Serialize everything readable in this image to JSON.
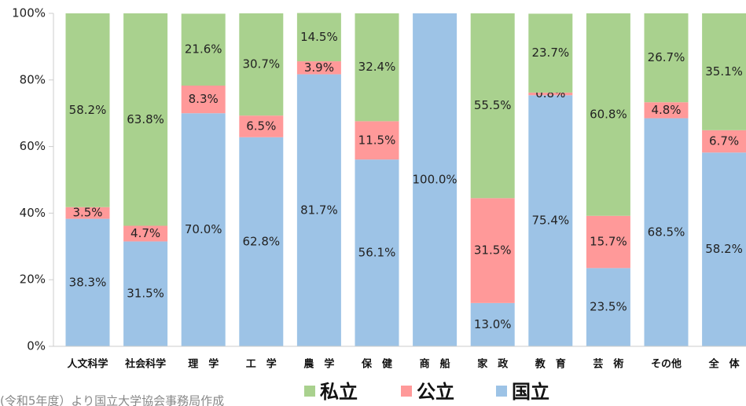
{
  "chart_data": {
    "type": "stacked_bar",
    "categories": [
      "人文科学",
      "社会科学",
      "理　学",
      "工　学",
      "農　学",
      "保　健",
      "商　船",
      "家　政",
      "教　育",
      "芸　術",
      "その他",
      "全　体"
    ],
    "series": [
      {
        "name": "国立",
        "color": "#9dc3e6",
        "values": [
          38.3,
          31.5,
          70.0,
          62.8,
          81.7,
          56.1,
          100.0,
          13.0,
          75.4,
          23.5,
          68.5,
          58.2
        ],
        "value_labels": [
          "38.3%",
          "31.5%",
          "70.0%",
          "62.8%",
          "81.7%",
          "56.1%",
          "100.0%",
          "13.0%",
          "75.4%",
          "23.5%",
          "68.5%",
          "58.2%"
        ]
      },
      {
        "name": "公立",
        "color": "#ff9999",
        "values": [
          3.5,
          4.7,
          8.3,
          6.5,
          3.9,
          11.5,
          null,
          31.5,
          0.8,
          15.7,
          4.8,
          6.7
        ],
        "value_labels": [
          "3.5%",
          "4.7%",
          "8.3%",
          "6.5%",
          "3.9%",
          "11.5%",
          null,
          "31.5%",
          "0.8%",
          "15.7%",
          "4.8%",
          "6.7%"
        ]
      },
      {
        "name": "私立",
        "color": "#a9d18e",
        "values": [
          58.2,
          63.8,
          21.6,
          30.7,
          14.5,
          32.4,
          null,
          55.5,
          23.7,
          60.8,
          26.7,
          35.1
        ],
        "value_labels": [
          "58.2%",
          "63.8%",
          "21.6%",
          "30.7%",
          "14.5%",
          "32.4%",
          null,
          "55.5%",
          "23.7%",
          "60.8%",
          "26.7%",
          "35.1%"
        ]
      }
    ],
    "legend_order": [
      "私立",
      "公立",
      "国立"
    ],
    "ylim": [
      0,
      100
    ],
    "yticks": [
      {
        "value": 0,
        "label": "0%"
      },
      {
        "value": 20,
        "label": "20%"
      },
      {
        "value": 40,
        "label": "40%"
      },
      {
        "value": 60,
        "label": "60%"
      },
      {
        "value": 80,
        "label": "80%"
      },
      {
        "value": 100,
        "label": "100%"
      }
    ],
    "source": "(令和5年度）より国立大学協会事務局作成"
  }
}
